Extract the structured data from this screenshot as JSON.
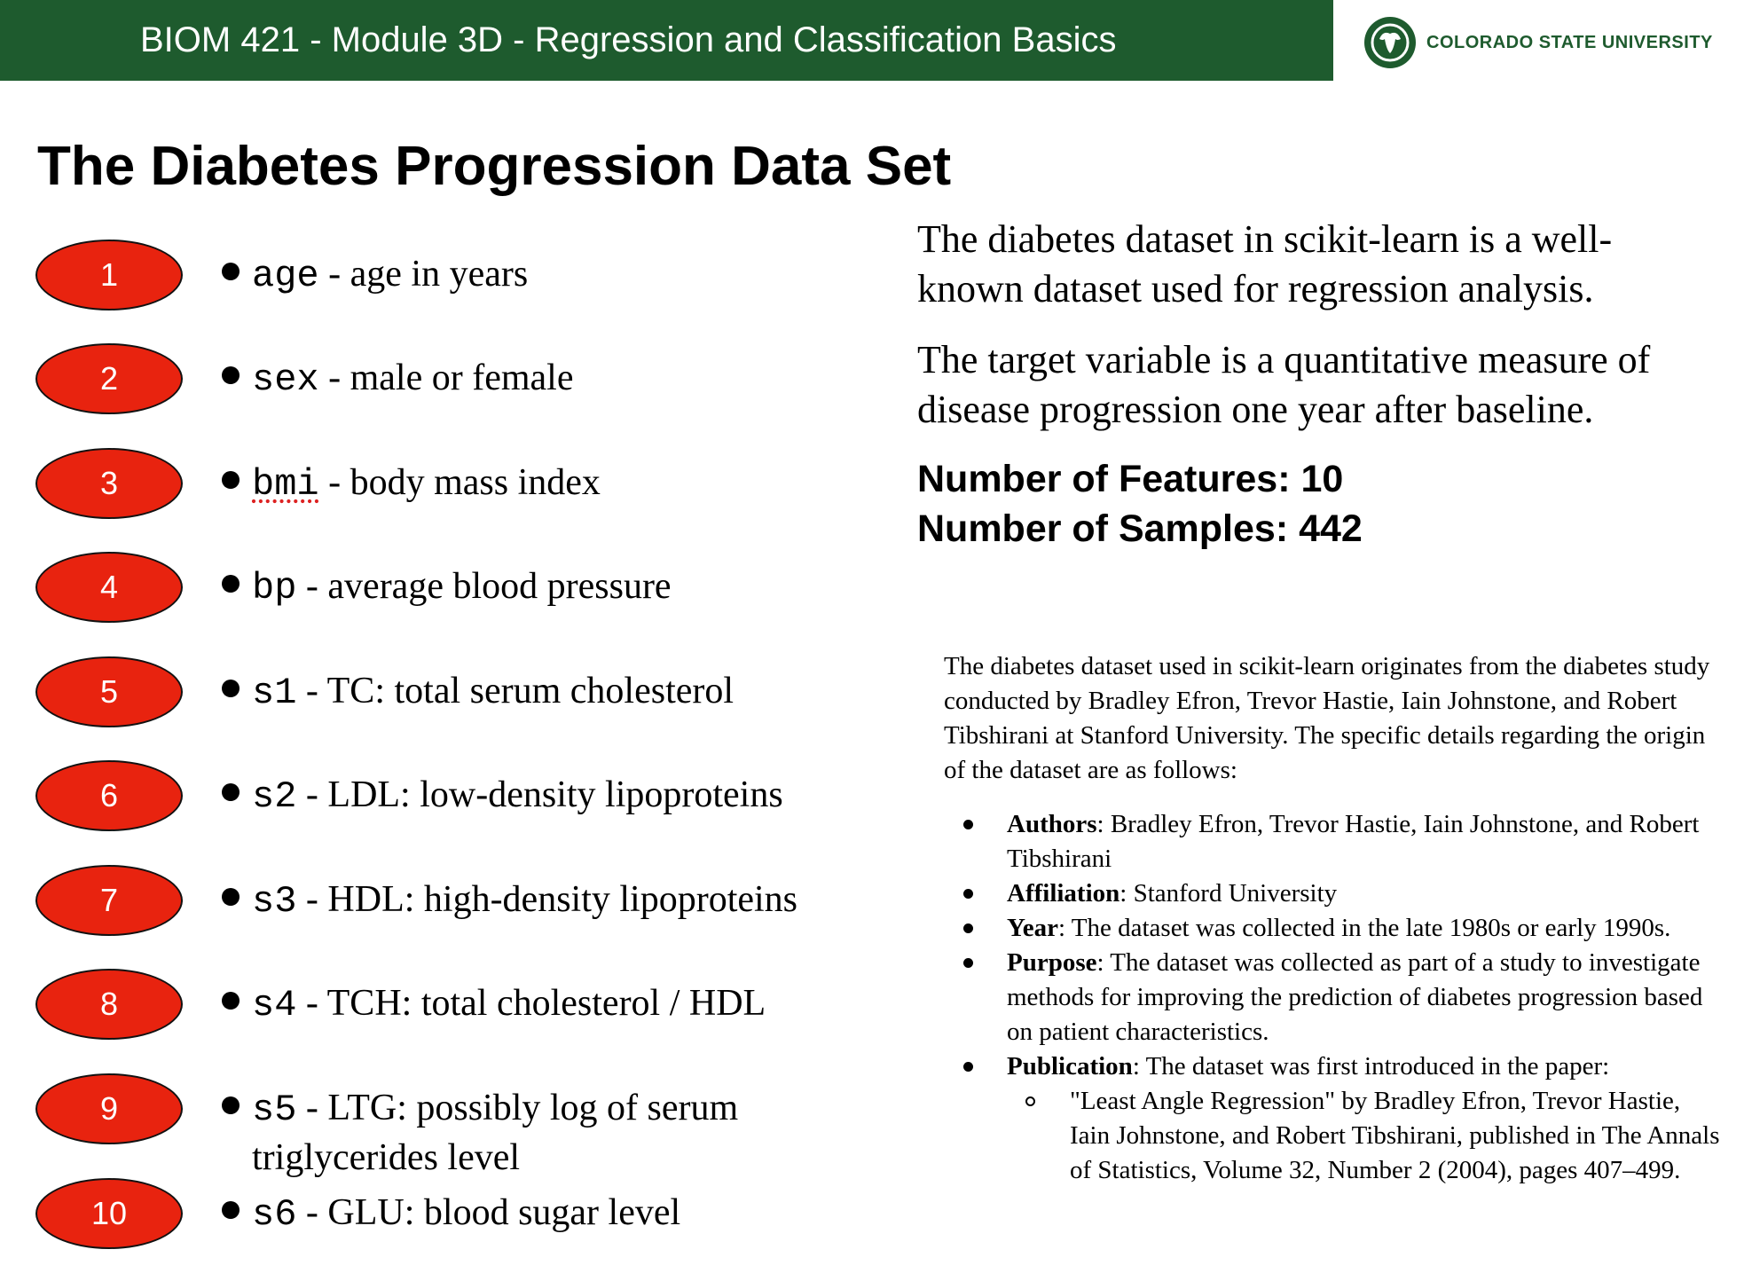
{
  "header": {
    "title": "BIOM 421 - Module  3D - Regression and Classification Basics",
    "logo_text": "COLORADO STATE UNIVERSITY"
  },
  "page_title": "The Diabetes Progression Data Set",
  "features": [
    {
      "num": "1",
      "code": "age",
      "desc": " - age in years"
    },
    {
      "num": "2",
      "code": "sex",
      "desc": " - male or female"
    },
    {
      "num": "3",
      "code": "bmi",
      "desc": " - body mass index"
    },
    {
      "num": "4",
      "code": "bp",
      "desc": " - average blood pressure"
    },
    {
      "num": "5",
      "code": "s1",
      "desc": " - TC: total serum cholesterol"
    },
    {
      "num": "6",
      "code": "s2",
      "desc": " - LDL: low-density lipoproteins"
    },
    {
      "num": "7",
      "code": "s3",
      "desc": " - HDL: high-density lipoproteins"
    },
    {
      "num": "8",
      "code": "s4",
      "desc": " - TCH: total cholesterol / HDL"
    },
    {
      "num": "9",
      "code": "s5",
      "desc": " - LTG: possibly log of serum triglycerides level"
    },
    {
      "num": "10",
      "code": "s6",
      "desc": " - GLU: blood sugar level"
    }
  ],
  "intro": {
    "p1": "The diabetes dataset in scikit-learn is a well-known dataset used for regression analysis.",
    "p2": "The target variable is a quantitative measure of disease progression one year after baseline."
  },
  "stats": {
    "features": "Number of Features: 10",
    "samples": "Number of Samples: 442"
  },
  "origin": {
    "paragraph": "The diabetes dataset used in scikit-learn originates from the diabetes study conducted by Bradley Efron, Trevor Hastie, Iain Johnstone, and Robert Tibshirani at Stanford University. The specific details regarding the origin of the dataset are as follows:",
    "items": [
      {
        "label": "Authors",
        "text": ": Bradley Efron, Trevor Hastie, Iain Johnstone, and Robert Tibshirani"
      },
      {
        "label": "Affiliation",
        "text": ": Stanford University"
      },
      {
        "label": "Year",
        "text": ": The dataset was collected in the late 1980s or early 1990s."
      },
      {
        "label": "Purpose",
        "text": ": The dataset was collected as part of a study to investigate methods for improving the prediction of diabetes progression based on patient characteristics."
      },
      {
        "label": "Publication",
        "text": ": The dataset was first introduced in the paper:"
      }
    ],
    "sub_item": "\"Least Angle Regression\" by Bradley Efron, Trevor Hastie, Iain Johnstone, and Robert Tibshirani, published in The Annals of Statistics, Volume 32, Number 2 (2004), pages 407–499."
  },
  "colors": {
    "header_green": "#1e5b2e",
    "badge_red": "#e8230f"
  },
  "icons": {
    "logo": "ram-head-logo-icon"
  }
}
